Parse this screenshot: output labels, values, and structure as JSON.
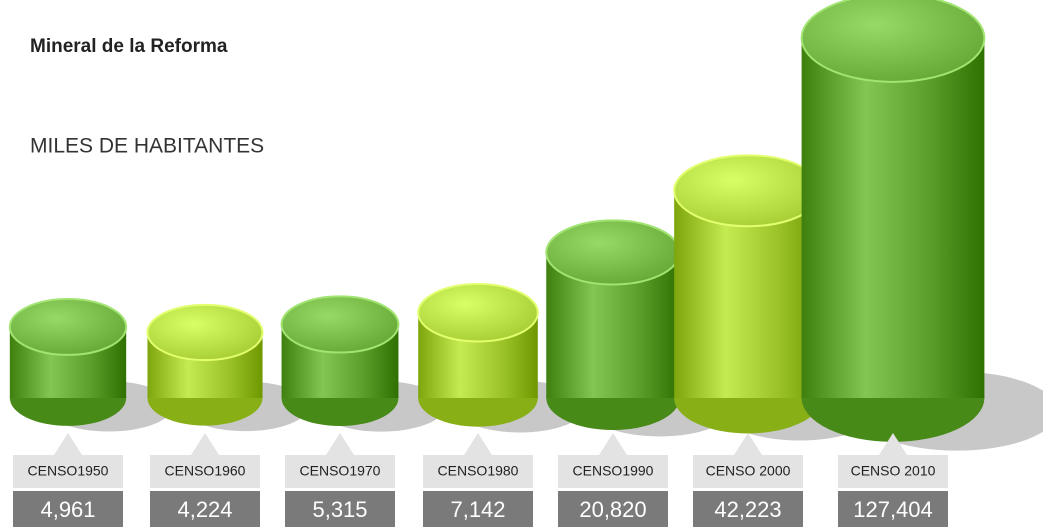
{
  "chart_data": {
    "type": "cylinder",
    "title": "Mineral de la Reforma",
    "subtitle": "MILES DE HABITANTES",
    "categories": [
      "CENSO1950",
      "CENSO1960",
      "CENSO1970",
      "CENSO1980",
      "CENSO1990",
      "CENSO 2000",
      "CENSO 2010"
    ],
    "values": [
      4961,
      4224,
      5315,
      7142,
      20820,
      42223,
      127404
    ],
    "value_labels": [
      "4,961",
      "4,224",
      "5,315",
      "7,142",
      "20,820",
      "42,223",
      "127,404"
    ],
    "colors": [
      "#5c9e2c",
      "#9cc42a",
      "#5c9e2c",
      "#9cc42a",
      "#5c9e2c",
      "#9cc42a",
      "#5c9e2c"
    ],
    "scale": "sqrt"
  }
}
